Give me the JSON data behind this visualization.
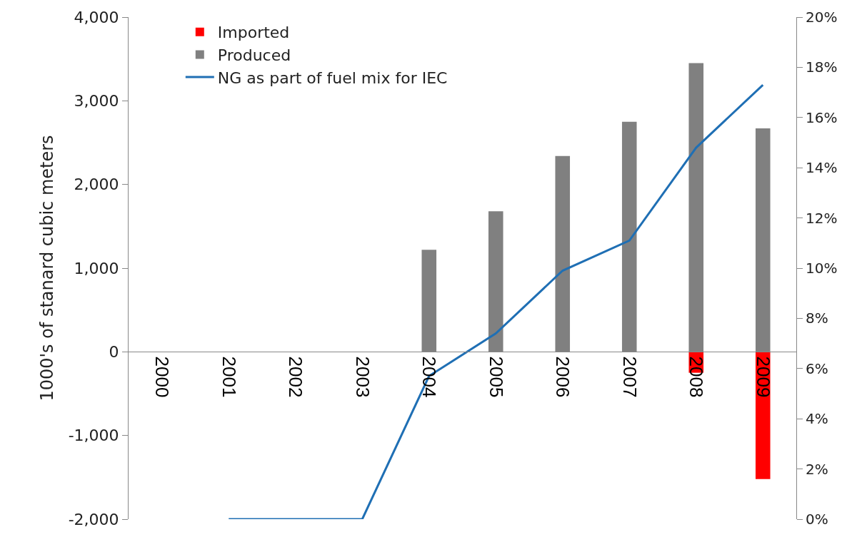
{
  "chart_data": {
    "type": "bar",
    "ylabel": "1000's of stanard cubic meters",
    "categories": [
      "2000",
      "2001",
      "2002",
      "2003",
      "2004",
      "2005",
      "2006",
      "2007",
      "2008",
      "2009"
    ],
    "stacked": true,
    "series": [
      {
        "name": "Imported",
        "color": "#ff0000",
        "values": [
          null,
          null,
          null,
          null,
          null,
          null,
          null,
          null,
          -250,
          -1520
        ]
      },
      {
        "name": "Produced",
        "color": "#808080",
        "values": [
          null,
          null,
          null,
          null,
          1220,
          1680,
          2340,
          2750,
          3450,
          2670
        ]
      },
      {
        "name": "NG as part of fuel mix for IEC",
        "type": "line",
        "axis": "y2",
        "color": "#1f6fb4",
        "values": [
          null,
          0,
          0,
          0,
          5.7,
          7.4,
          9.9,
          11.1,
          14.8,
          17.3
        ]
      }
    ],
    "ylim": [
      -2000,
      4000
    ],
    "yticks": [
      {
        "value": -2000,
        "label": "-2,000"
      },
      {
        "value": -1000,
        "label": "-1,000"
      },
      0,
      {
        "value": 1000,
        "label": "1,000"
      },
      {
        "value": 2000,
        "label": "2,000"
      },
      {
        "value": 3000,
        "label": "3,000"
      },
      {
        "value": 4000,
        "label": "4,000"
      }
    ],
    "y2lim": [
      0,
      20
    ],
    "y2ticks": [
      {
        "value": 0,
        "label": "0%"
      },
      {
        "value": 2,
        "label": "2%"
      },
      {
        "value": 4,
        "label": "4%"
      },
      {
        "value": 6,
        "label": "6%"
      },
      {
        "value": 8,
        "label": "8%"
      },
      {
        "value": 10,
        "label": "10%"
      },
      {
        "value": 12,
        "label": "12%"
      },
      {
        "value": 14,
        "label": "14%"
      },
      {
        "value": 16,
        "label": "16%"
      },
      {
        "value": 18,
        "label": "18%"
      },
      {
        "value": 20,
        "label": "20%"
      }
    ],
    "legend": "top left",
    "marker": "none",
    "line_style": "solid"
  }
}
